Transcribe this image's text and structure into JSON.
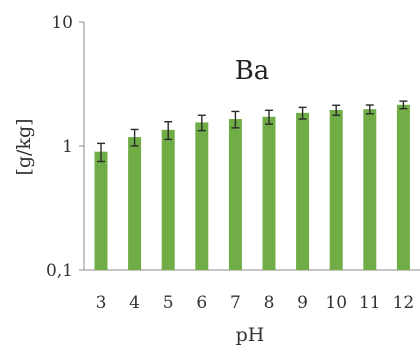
{
  "chart_data": {
    "type": "bar",
    "title": "Ba",
    "xlabel": "pH",
    "ylabel": "[g/kg]",
    "yscale": "log",
    "ylim": [
      0.1,
      10
    ],
    "yticks": [
      0.1,
      1,
      10
    ],
    "ytick_labels": [
      "0,1",
      "1",
      "10"
    ],
    "categories": [
      "3",
      "4",
      "5",
      "6",
      "7",
      "8",
      "9",
      "10",
      "11",
      "12"
    ],
    "values": [
      0.9,
      1.18,
      1.35,
      1.55,
      1.65,
      1.72,
      1.85,
      1.95,
      1.98,
      2.15
    ],
    "errors": [
      0.15,
      0.18,
      0.22,
      0.22,
      0.25,
      0.22,
      0.2,
      0.18,
      0.16,
      0.15
    ],
    "grid": false,
    "legend": "none",
    "colors": {
      "bar": "#70ad47",
      "error_bar": "#2b2b2b",
      "axis": "#8c8c8c"
    }
  }
}
